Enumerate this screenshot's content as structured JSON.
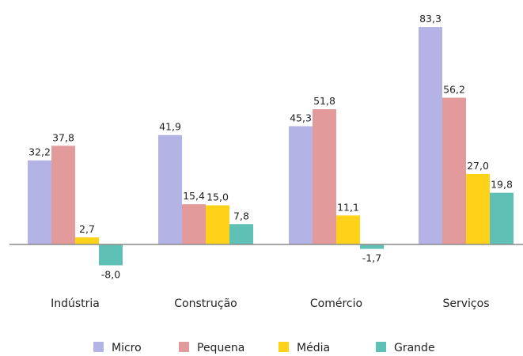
{
  "chart_data": {
    "type": "bar",
    "categories": [
      "Indústria",
      "Construção",
      "Comércio",
      "Serviços"
    ],
    "series": [
      {
        "name": "Micro",
        "color": "#b3b3e6",
        "values": [
          32.2,
          41.9,
          45.3,
          83.3
        ],
        "labels": [
          "32,2",
          "41,9",
          "45,3",
          "83,3"
        ]
      },
      {
        "name": "Pequena",
        "color": "#e39a9a",
        "values": [
          37.8,
          15.4,
          51.8,
          56.2
        ],
        "labels": [
          "37,8",
          "15,4",
          "51,8",
          "56,2"
        ]
      },
      {
        "name": "Média",
        "color": "#ffd21a",
        "values": [
          2.7,
          15.0,
          11.1,
          27.0
        ],
        "labels": [
          "2,7",
          "15,0",
          "11,1",
          "27,0"
        ]
      },
      {
        "name": "Grande",
        "color": "#5fc1b5",
        "values": [
          -8.0,
          7.8,
          -1.7,
          19.8
        ],
        "labels": [
          "-8,0",
          "7,8",
          "-1,7",
          "19,8"
        ]
      }
    ],
    "title": "",
    "xlabel": "",
    "ylabel": "",
    "ylim": [
      -10,
      90
    ],
    "grid": false,
    "legend": "bottom"
  }
}
